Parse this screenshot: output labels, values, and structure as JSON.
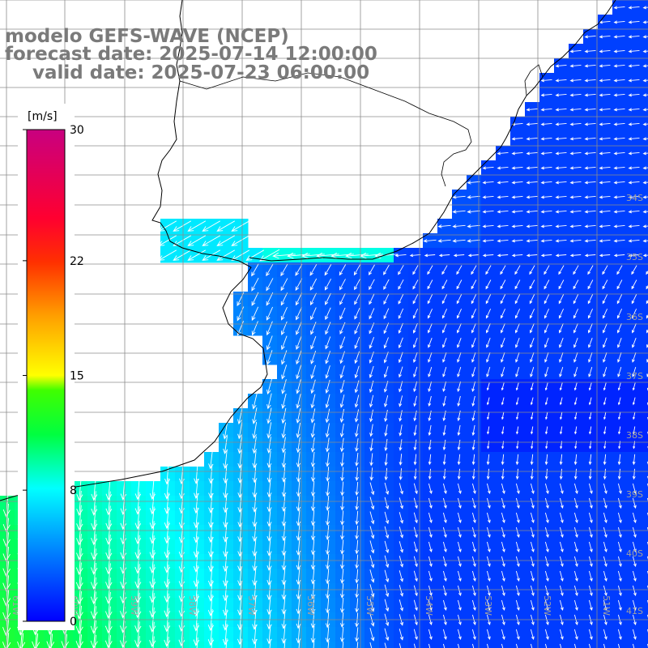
{
  "header": {
    "line1": "modelo GEFS-WAVE (NCEP)",
    "line2": "forecast date: 2025-07-14 12:00:00",
    "line3": "valid date: 2025-07-23 06:00:00"
  },
  "colorbar": {
    "unit": "[m/s]",
    "ticks": [
      "30",
      "22",
      "15",
      "8",
      "0"
    ],
    "tick_values": [
      30,
      22,
      15,
      8,
      0
    ],
    "max": 30,
    "min": 0
  },
  "map": {
    "lat_labels": [
      "34S",
      "35S",
      "36S",
      "37S",
      "38S",
      "39S",
      "40S",
      "41S"
    ],
    "lon_labels": [
      "61W",
      "60W",
      "59W",
      "58W",
      "57W",
      "56W",
      "55W",
      "54W",
      "53W",
      "52W",
      "51W"
    ],
    "colors": {
      "sea_low": "#0030ff",
      "sea_mid": "#00a8ff",
      "sea_high": "#00ff60",
      "land": "#ffffff",
      "grid": "#8c8c8c",
      "coast": "#000000",
      "arrow": "#ffffff",
      "header_text": "#7a7a7a"
    }
  }
}
